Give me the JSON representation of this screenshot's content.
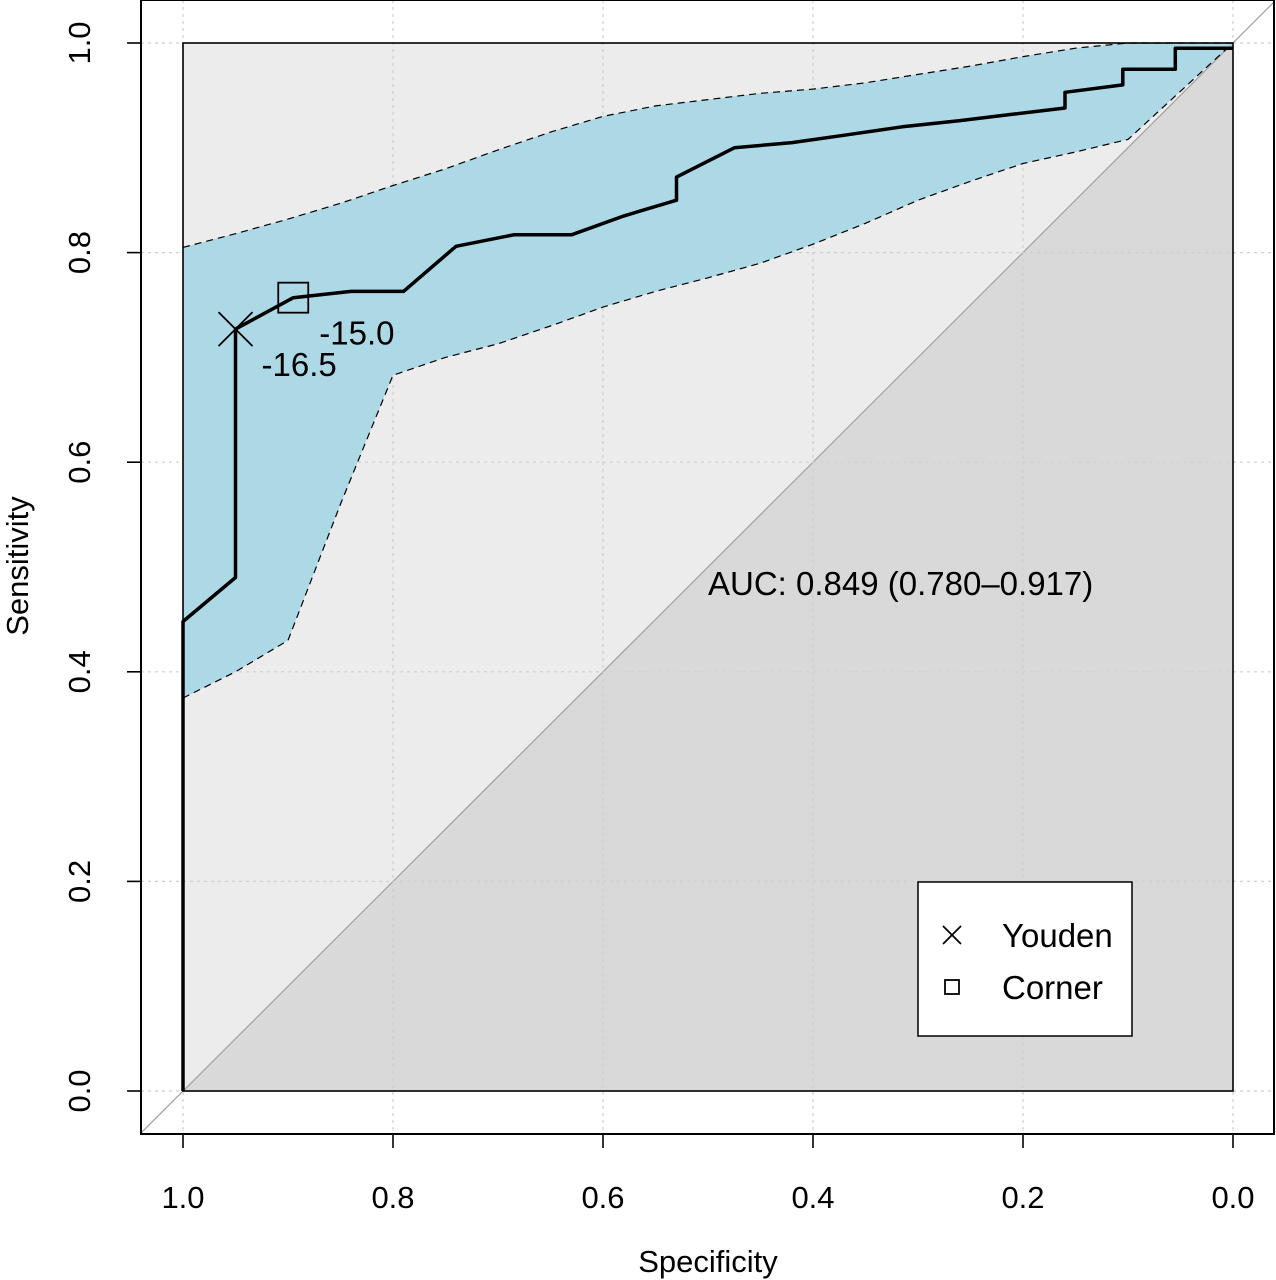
{
  "chart_data": {
    "type": "line",
    "xlabel": "Specificity",
    "ylabel": "Sensitivity",
    "xlim": [
      1.0,
      0.0
    ],
    "ylim": [
      0.0,
      1.0
    ],
    "x_reversed": true,
    "grid": true,
    "xticks": [
      1.0,
      0.8,
      0.6,
      0.4,
      0.2,
      0.0
    ],
    "yticks": [
      0.0,
      0.2,
      0.4,
      0.6,
      0.8,
      1.0
    ],
    "xtick_labels": [
      "1.0",
      "0.8",
      "0.6",
      "0.4",
      "0.2",
      "0.0"
    ],
    "ytick_labels": [
      "0.0",
      "0.2",
      "0.4",
      "0.6",
      "0.8",
      "1.0"
    ],
    "auc_text": "AUC: 0.849 (0.780–0.917)",
    "colors": {
      "ci_band": "#add8e6",
      "under_diagonal": "#d9d9d9",
      "above_band": "#ececec",
      "roc_line": "#000000",
      "diagonal": "#a0a0a0",
      "grid": "#cfcfcf"
    },
    "roc_curve": {
      "specificity": [
        1.0,
        1.0,
        0.95,
        0.95,
        0.895,
        0.84,
        0.79,
        0.74,
        0.685,
        0.63,
        0.58,
        0.53,
        0.53,
        0.475,
        0.42,
        0.37,
        0.315,
        0.26,
        0.21,
        0.16,
        0.16,
        0.105,
        0.105,
        0.055,
        0.055,
        0.0
      ],
      "sensitivity": [
        0.0,
        0.448,
        0.49,
        0.727,
        0.757,
        0.763,
        0.763,
        0.806,
        0.817,
        0.817,
        0.835,
        0.85,
        0.872,
        0.9,
        0.905,
        0.912,
        0.92,
        0.926,
        0.932,
        0.938,
        0.953,
        0.96,
        0.975,
        0.975,
        0.995,
        0.995
      ]
    },
    "ci_upper": {
      "specificity": [
        1.0,
        0.95,
        0.9,
        0.85,
        0.8,
        0.75,
        0.7,
        0.65,
        0.6,
        0.55,
        0.5,
        0.45,
        0.4,
        0.35,
        0.3,
        0.25,
        0.2,
        0.15,
        0.1,
        0.05,
        0.0
      ],
      "sensitivity": [
        0.805,
        0.818,
        0.832,
        0.847,
        0.864,
        0.88,
        0.898,
        0.915,
        0.93,
        0.94,
        0.946,
        0.952,
        0.956,
        0.962,
        0.97,
        0.978,
        0.987,
        0.995,
        1.0,
        1.0,
        1.0
      ]
    },
    "ci_lower": {
      "specificity": [
        1.0,
        0.95,
        0.9,
        0.85,
        0.8,
        0.75,
        0.7,
        0.65,
        0.6,
        0.55,
        0.5,
        0.45,
        0.4,
        0.35,
        0.3,
        0.25,
        0.2,
        0.15,
        0.1,
        0.0
      ],
      "sensitivity": [
        0.375,
        0.4,
        0.43,
        0.56,
        0.683,
        0.7,
        0.713,
        0.73,
        0.748,
        0.763,
        0.776,
        0.79,
        0.808,
        0.828,
        0.85,
        0.868,
        0.885,
        0.896,
        0.908,
        1.0
      ]
    },
    "markers": [
      {
        "name": "Youden",
        "symbol": "x",
        "specificity": 0.95,
        "sensitivity": 0.727,
        "label": "-16.5"
      },
      {
        "name": "Corner",
        "symbol": "square",
        "specificity": 0.895,
        "sensitivity": 0.757,
        "label": "-15.0"
      }
    ],
    "legend": {
      "position": "bottom-right",
      "items": [
        {
          "symbol": "x",
          "label": "Youden"
        },
        {
          "symbol": "square",
          "label": "Corner"
        }
      ]
    }
  }
}
